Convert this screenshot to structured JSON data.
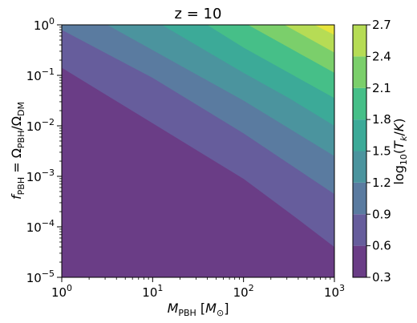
{
  "chart_data": {
    "type": "heatmap",
    "title": "z = 10",
    "xlabel": "M_PBH [M_⊙]",
    "ylabel": "f_PBH = Ω_PBH/Ω_DM",
    "colorbar_label": "log10(T_k/K)",
    "x_scale": "log",
    "y_scale": "log",
    "xlim": [
      1,
      1000
    ],
    "ylim": [
      1e-05,
      1
    ],
    "x_ticks": [
      {
        "base": "10",
        "exp": "0"
      },
      {
        "base": "10",
        "exp": "1"
      },
      {
        "base": "10",
        "exp": "2"
      },
      {
        "base": "10",
        "exp": "3"
      }
    ],
    "y_ticks": [
      {
        "base": "10",
        "exp": "−5"
      },
      {
        "base": "10",
        "exp": "−4"
      },
      {
        "base": "10",
        "exp": "−3"
      },
      {
        "base": "10",
        "exp": "−2"
      },
      {
        "base": "10",
        "exp": "−1"
      },
      {
        "base": "10",
        "exp": "0"
      }
    ],
    "levels": [
      0.3,
      0.6,
      0.9,
      1.2,
      1.5,
      1.8,
      2.1,
      2.4,
      2.7
    ],
    "level_labels": [
      "0.3",
      "0.6",
      "0.9",
      "1.2",
      "1.5",
      "1.8",
      "2.1",
      "2.4",
      "2.7"
    ],
    "colormap": "viridis",
    "band_colors": [
      "#6a3d86",
      "#665d9c",
      "#5a7ba0",
      "#4b949e",
      "#3caa98",
      "#46bf88",
      "#7bcf6b",
      "#b6dc55",
      "#e6e43c"
    ],
    "contour_boundaries": [
      {
        "level": 0.6,
        "points": [
          [
            0,
            -0.85
          ],
          [
            1,
            -1.95
          ],
          [
            2,
            -3.05
          ],
          [
            2.6,
            -3.85
          ],
          [
            3,
            -4.4
          ]
        ]
      },
      {
        "level": 0.9,
        "points": [
          [
            0,
            -0.1
          ],
          [
            1,
            -1.05
          ],
          [
            2,
            -2.15
          ],
          [
            2.5,
            -2.75
          ],
          [
            3,
            -3.35
          ]
        ]
      },
      {
        "level": 1.2,
        "points": [
          [
            0.5,
            0
          ],
          [
            1,
            -0.5
          ],
          [
            2,
            -1.5
          ],
          [
            2.5,
            -2.05
          ],
          [
            3,
            -2.6
          ]
        ]
      },
      {
        "level": 1.5,
        "points": [
          [
            1.1,
            0
          ],
          [
            2,
            -0.95
          ],
          [
            2.5,
            -1.45
          ],
          [
            3,
            -2.0
          ]
        ]
      },
      {
        "level": 1.8,
        "points": [
          [
            1.6,
            0
          ],
          [
            2,
            -0.45
          ],
          [
            2.5,
            -0.95
          ],
          [
            3,
            -1.45
          ]
        ]
      },
      {
        "level": 2.1,
        "points": [
          [
            2.05,
            0
          ],
          [
            2.5,
            -0.45
          ],
          [
            3,
            -0.95
          ]
        ]
      },
      {
        "level": 2.4,
        "points": [
          [
            2.45,
            0
          ],
          [
            3,
            -0.55
          ]
        ]
      },
      {
        "level": 2.7,
        "points": [
          [
            2.78,
            0
          ],
          [
            3,
            -0.2
          ]
        ]
      }
    ]
  }
}
